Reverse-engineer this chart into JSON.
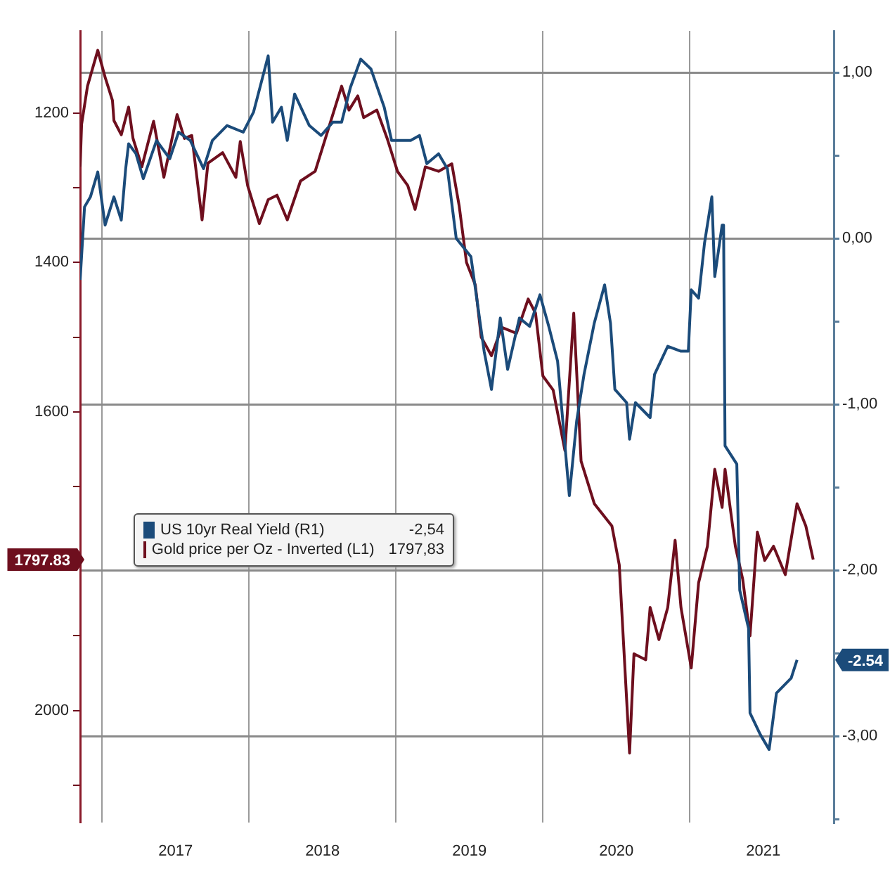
{
  "chart_data": {
    "type": "line",
    "xlim": [
      2016.85,
      2021.98
    ],
    "xticks": [
      {
        "value": 2017,
        "label": null
      },
      {
        "value": 2017.5,
        "label": "2017"
      },
      {
        "value": 2018,
        "label": null
      },
      {
        "value": 2018.5,
        "label": "2018"
      },
      {
        "value": 2019,
        "label": null
      },
      {
        "value": 2019.5,
        "label": "2019"
      },
      {
        "value": 2020,
        "label": null
      },
      {
        "value": 2020.5,
        "label": "2020"
      },
      {
        "value": 2021,
        "label": null
      },
      {
        "value": 2021.5,
        "label": "2021"
      }
    ],
    "ylim": [
      2150,
      1090
    ],
    "yticks": [
      1200,
      {
        "value": 1300,
        "label": null
      },
      1400,
      {
        "value": 1500,
        "label": null
      },
      1600,
      {
        "value": 1700,
        "label": null
      },
      {
        "value": 1800,
        "label": null
      },
      {
        "value": 1900,
        "label": null
      },
      2000,
      {
        "value": 2100,
        "label": null
      }
    ],
    "y2lim": [
      -3.52,
      1.25
    ],
    "y2ticks": [
      {
        "value": 1,
        "label": "1,00"
      },
      {
        "value": 0.5,
        "label": null
      },
      {
        "value": 0,
        "label": "0,00"
      },
      {
        "value": -0.5,
        "label": null
      },
      {
        "value": -1,
        "label": "-1,00"
      },
      {
        "value": -1.5,
        "label": null
      },
      {
        "value": -2,
        "label": "-2,00"
      },
      {
        "value": -2.5,
        "label": null
      },
      {
        "value": -3,
        "label": "-3,00"
      },
      {
        "value": -3.5,
        "label": null
      }
    ],
    "grid": true,
    "legend": "left",
    "annotations": [
      "-2,54",
      "1797,83",
      "-2.54",
      "1797.83"
    ],
    "series": [
      {
        "name": "US 10yr Real Yield (R1)",
        "color": "#1b4b7a",
        "axis": "y2",
        "x": [
          2016.85,
          2016.88,
          2016.92,
          2016.97,
          2017.02,
          2017.08,
          2017.13,
          2017.16,
          2017.18,
          2017.23,
          2017.28,
          2017.37,
          2017.46,
          2017.52,
          2017.6,
          2017.69,
          2017.75,
          2017.85,
          2017.96,
          2018.03,
          2018.13,
          2018.16,
          2018.22,
          2018.26,
          2018.31,
          2018.41,
          2018.49,
          2018.57,
          2018.63,
          2018.69,
          2018.76,
          2018.83,
          2018.92,
          2018.97,
          2019.04,
          2019.1,
          2019.16,
          2019.21,
          2019.29,
          2019.35,
          2019.41,
          2019.51,
          2019.6,
          2019.65,
          2019.71,
          2019.76,
          2019.84,
          2019.91,
          2019.98,
          2020.04,
          2020.1,
          2020.18,
          2020.23,
          2020.28,
          2020.35,
          2020.42,
          2020.46,
          2020.49,
          2020.57,
          2020.59,
          2020.63,
          2020.73,
          2020.76,
          2020.85,
          2020.94,
          2020.99,
          2021.01,
          2021.06,
          2021.1,
          2021.15,
          2021.17,
          2021.22,
          2021.23,
          2021.24,
          2021.32,
          2021.34,
          2021.4,
          2021.41,
          2021.48,
          2021.54,
          2021.59,
          2021.69,
          2021.73
        ],
        "values": [
          -0.25,
          0.19,
          0.25,
          0.4,
          0.08,
          0.25,
          0.11,
          0.42,
          0.57,
          0.51,
          0.36,
          0.59,
          0.48,
          0.64,
          0.59,
          0.42,
          0.59,
          0.68,
          0.64,
          0.76,
          1.1,
          0.7,
          0.79,
          0.59,
          0.87,
          0.68,
          0.62,
          0.7,
          0.7,
          0.91,
          1.08,
          1.02,
          0.79,
          0.59,
          0.59,
          0.59,
          0.62,
          0.45,
          0.51,
          0.42,
          0.0,
          -0.11,
          -0.68,
          -0.91,
          -0.48,
          -0.79,
          -0.48,
          -0.53,
          -0.34,
          -0.53,
          -0.74,
          -1.55,
          -1.1,
          -0.82,
          -0.51,
          -0.28,
          -0.51,
          -0.91,
          -0.99,
          -1.21,
          -0.99,
          -1.08,
          -0.82,
          -0.65,
          -0.68,
          -0.68,
          -0.31,
          -0.36,
          -0.03,
          0.25,
          -0.23,
          0.08,
          0.08,
          -1.25,
          -1.36,
          -2.12,
          -2.35,
          -2.86,
          -2.99,
          -3.08,
          -2.74,
          -2.65,
          -2.54
        ],
        "value_labels": [
          null,
          null,
          null,
          null,
          null,
          null,
          null,
          null,
          null,
          null,
          null,
          null,
          null,
          null,
          null,
          null,
          null,
          null,
          null,
          null,
          null,
          null,
          null,
          null,
          null,
          null,
          null,
          null,
          null,
          null,
          null,
          null,
          null,
          null,
          null,
          null,
          null,
          null,
          null,
          null,
          null,
          null,
          null,
          null,
          null,
          null,
          null,
          null,
          null,
          null,
          null,
          null,
          null,
          null,
          null,
          null,
          null,
          null,
          null,
          null,
          null,
          null,
          null,
          null,
          null,
          null,
          null,
          null,
          null,
          null,
          null,
          null,
          null,
          null,
          null,
          null,
          null,
          null,
          null,
          null,
          null,
          null,
          null
        ]
      },
      {
        "name": "Gold price per Oz - Inverted (L1)",
        "color": "#6e0f1e",
        "axis": "y",
        "x": [
          2016.85,
          2016.86,
          2016.9,
          2016.97,
          2017.02,
          2017.07,
          2017.08,
          2017.13,
          2017.18,
          2017.21,
          2017.27,
          2017.35,
          2017.42,
          2017.51,
          2017.56,
          2017.61,
          2017.68,
          2017.72,
          2017.82,
          2017.91,
          2017.94,
          2017.99,
          2018.07,
          2018.13,
          2018.19,
          2018.26,
          2018.35,
          2018.45,
          2018.54,
          2018.63,
          2018.68,
          2018.74,
          2018.78,
          2018.87,
          2018.94,
          2019.01,
          2019.08,
          2019.13,
          2019.2,
          2019.29,
          2019.38,
          2019.43,
          2019.48,
          2019.54,
          2019.58,
          2019.65,
          2019.72,
          2019.82,
          2019.9,
          2019.95,
          2020.0,
          2020.07,
          2020.15,
          2020.21,
          2020.26,
          2020.35,
          2020.47,
          2020.52,
          2020.59,
          2020.62,
          2020.7,
          2020.73,
          2020.79,
          2020.85,
          2020.9,
          2020.94,
          2021.01,
          2021.06,
          2021.12,
          2021.17,
          2021.22,
          2021.24,
          2021.31,
          2021.36,
          2021.41,
          2021.46,
          2021.51,
          2021.57,
          2021.65,
          2021.73,
          2021.79,
          2021.84
        ],
        "values": [
          1272,
          1215,
          1164,
          1116,
          1152,
          1183,
          1210,
          1229,
          1192,
          1234,
          1272,
          1211,
          1286,
          1202,
          1234,
          1230,
          1343,
          1267,
          1253,
          1286,
          1238,
          1297,
          1348,
          1316,
          1310,
          1343,
          1291,
          1278,
          1221,
          1164,
          1196,
          1177,
          1206,
          1196,
          1234,
          1278,
          1297,
          1329,
          1272,
          1278,
          1268,
          1324,
          1400,
          1430,
          1500,
          1525,
          1487,
          1495,
          1449,
          1468,
          1552,
          1571,
          1652,
          1468,
          1666,
          1723,
          1753,
          1805,
          2057,
          1924,
          1932,
          1862,
          1905,
          1862,
          1772,
          1862,
          1943,
          1829,
          1780,
          1677,
          1728,
          1677,
          1780,
          1824,
          1900,
          1761,
          1799,
          1780,
          1818,
          1723,
          1753,
          1797.83
        ],
        "value_labels": [
          null,
          null,
          null,
          null,
          null,
          null,
          null,
          null,
          null,
          null,
          null,
          null,
          null,
          null,
          null,
          null,
          null,
          null,
          null,
          null,
          null,
          null,
          null,
          null,
          null,
          null,
          null,
          null,
          null,
          null,
          null,
          null,
          null,
          null,
          null,
          null,
          null,
          null,
          null,
          null,
          null,
          null,
          null,
          null,
          null,
          null,
          null,
          null,
          null,
          null,
          null,
          null,
          null,
          null,
          null,
          null,
          null,
          null,
          null,
          null,
          null,
          null,
          null,
          null,
          null,
          null,
          null,
          null,
          null,
          null,
          null,
          null,
          null,
          null,
          null,
          null,
          null,
          null,
          null,
          null,
          null,
          null
        ]
      }
    ]
  }
}
